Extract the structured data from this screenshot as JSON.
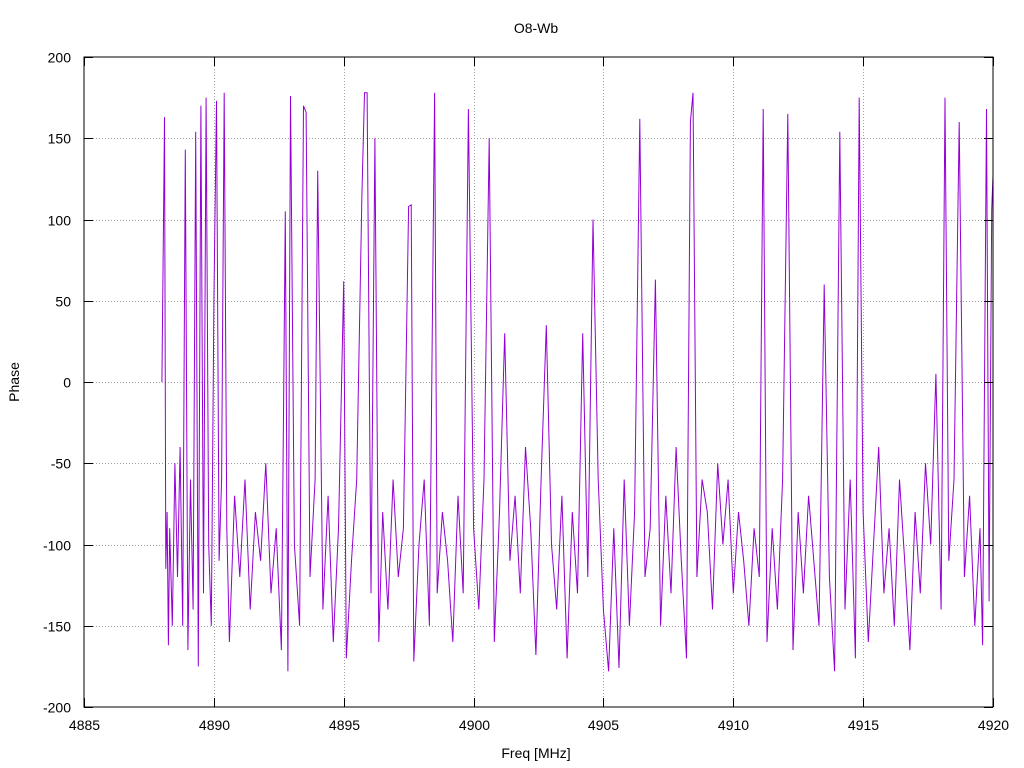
{
  "chart_data": {
    "type": "line",
    "title": "O8-Wb",
    "xlabel": "Freq [MHz]",
    "ylabel": "Phase",
    "xlim": [
      4885,
      4920
    ],
    "ylim": [
      -200,
      200
    ],
    "x_ticks": [
      4885,
      4890,
      4895,
      4900,
      4905,
      4910,
      4915,
      4920
    ],
    "y_ticks": [
      -200,
      -150,
      -100,
      -50,
      0,
      50,
      100,
      150,
      200
    ],
    "grid": true,
    "legend": "none",
    "series": [
      {
        "color": "#9400d3",
        "x_start": 4888.0,
        "x_end": 4920.0,
        "points": [
          [
            4888.0,
            0
          ],
          [
            4888.05,
            80
          ],
          [
            4888.1,
            163
          ],
          [
            4888.15,
            -115
          ],
          [
            4888.2,
            -80
          ],
          [
            4888.25,
            -162
          ],
          [
            4888.3,
            -90
          ],
          [
            4888.4,
            -150
          ],
          [
            4888.5,
            -50
          ],
          [
            4888.6,
            -120
          ],
          [
            4888.7,
            -40
          ],
          [
            4888.8,
            -150
          ],
          [
            4888.9,
            143
          ],
          [
            4889.0,
            -165
          ],
          [
            4889.1,
            -60
          ],
          [
            4889.2,
            -140
          ],
          [
            4889.3,
            154
          ],
          [
            4889.4,
            -175
          ],
          [
            4889.5,
            170
          ],
          [
            4889.6,
            -130
          ],
          [
            4889.7,
            175
          ],
          [
            4889.8,
            -100
          ],
          [
            4889.9,
            -150
          ],
          [
            4890.0,
            50
          ],
          [
            4890.1,
            173
          ],
          [
            4890.2,
            -110
          ],
          [
            4890.3,
            -60
          ],
          [
            4890.4,
            178
          ],
          [
            4890.5,
            -90
          ],
          [
            4890.6,
            -160
          ],
          [
            4890.8,
            -70
          ],
          [
            4891.0,
            -120
          ],
          [
            4891.2,
            -60
          ],
          [
            4891.4,
            -140
          ],
          [
            4891.6,
            -80
          ],
          [
            4891.8,
            -110
          ],
          [
            4892.0,
            -50
          ],
          [
            4892.2,
            -130
          ],
          [
            4892.4,
            -90
          ],
          [
            4892.6,
            -165
          ],
          [
            4892.75,
            105
          ],
          [
            4892.85,
            -178
          ],
          [
            4892.95,
            176
          ],
          [
            4893.1,
            -100
          ],
          [
            4893.3,
            -150
          ],
          [
            4893.45,
            170
          ],
          [
            4893.55,
            166
          ],
          [
            4893.7,
            -120
          ],
          [
            4893.9,
            -60
          ],
          [
            4894.0,
            130
          ],
          [
            4894.2,
            -140
          ],
          [
            4894.4,
            -70
          ],
          [
            4894.6,
            -160
          ],
          [
            4894.8,
            -90
          ],
          [
            4895.0,
            62
          ],
          [
            4895.1,
            -170
          ],
          [
            4895.3,
            -110
          ],
          [
            4895.5,
            -60
          ],
          [
            4895.7,
            115
          ],
          [
            4895.8,
            178
          ],
          [
            4895.9,
            178
          ],
          [
            4896.05,
            -130
          ],
          [
            4896.2,
            150
          ],
          [
            4896.35,
            -160
          ],
          [
            4896.5,
            -80
          ],
          [
            4896.7,
            -140
          ],
          [
            4896.9,
            -60
          ],
          [
            4897.1,
            -120
          ],
          [
            4897.3,
            -90
          ],
          [
            4897.5,
            108
          ],
          [
            4897.6,
            109
          ],
          [
            4897.7,
            -172
          ],
          [
            4897.9,
            -100
          ],
          [
            4898.1,
            -60
          ],
          [
            4898.3,
            -150
          ],
          [
            4898.5,
            178
          ],
          [
            4898.6,
            -130
          ],
          [
            4898.8,
            -80
          ],
          [
            4899.0,
            -110
          ],
          [
            4899.2,
            -160
          ],
          [
            4899.4,
            -70
          ],
          [
            4899.6,
            -130
          ],
          [
            4899.8,
            168
          ],
          [
            4900.0,
            -90
          ],
          [
            4900.2,
            -140
          ],
          [
            4900.4,
            -60
          ],
          [
            4900.6,
            150
          ],
          [
            4900.8,
            -160
          ],
          [
            4901.0,
            -80
          ],
          [
            4901.2,
            30
          ],
          [
            4901.4,
            -110
          ],
          [
            4901.6,
            -70
          ],
          [
            4901.8,
            -130
          ],
          [
            4902.0,
            -40
          ],
          [
            4902.2,
            -90
          ],
          [
            4902.4,
            -168
          ],
          [
            4902.6,
            -60
          ],
          [
            4902.8,
            35
          ],
          [
            4903.0,
            -100
          ],
          [
            4903.2,
            -140
          ],
          [
            4903.4,
            -70
          ],
          [
            4903.6,
            -170
          ],
          [
            4903.8,
            -80
          ],
          [
            4904.0,
            -130
          ],
          [
            4904.2,
            30
          ],
          [
            4904.4,
            -120
          ],
          [
            4904.6,
            100
          ],
          [
            4904.8,
            -60
          ],
          [
            4905.0,
            -140
          ],
          [
            4905.2,
            -178
          ],
          [
            4905.4,
            -90
          ],
          [
            4905.6,
            -176
          ],
          [
            4905.8,
            -60
          ],
          [
            4906.0,
            -150
          ],
          [
            4906.2,
            -80
          ],
          [
            4906.4,
            162
          ],
          [
            4906.6,
            -120
          ],
          [
            4906.8,
            -90
          ],
          [
            4907.0,
            63
          ],
          [
            4907.2,
            -150
          ],
          [
            4907.4,
            -70
          ],
          [
            4907.6,
            -130
          ],
          [
            4907.8,
            -40
          ],
          [
            4908.0,
            -110
          ],
          [
            4908.2,
            -170
          ],
          [
            4908.35,
            160
          ],
          [
            4908.45,
            178
          ],
          [
            4908.6,
            -120
          ],
          [
            4908.8,
            -60
          ],
          [
            4909.0,
            -80
          ],
          [
            4909.2,
            -140
          ],
          [
            4909.4,
            -50
          ],
          [
            4909.6,
            -100
          ],
          [
            4909.8,
            -60
          ],
          [
            4910.0,
            -130
          ],
          [
            4910.2,
            -80
          ],
          [
            4910.4,
            -110
          ],
          [
            4910.6,
            -150
          ],
          [
            4910.8,
            -90
          ],
          [
            4911.0,
            -120
          ],
          [
            4911.15,
            168
          ],
          [
            4911.3,
            -160
          ],
          [
            4911.5,
            -90
          ],
          [
            4911.7,
            -140
          ],
          [
            4911.9,
            -60
          ],
          [
            4912.1,
            165
          ],
          [
            4912.3,
            -165
          ],
          [
            4912.5,
            -80
          ],
          [
            4912.7,
            -130
          ],
          [
            4912.9,
            -70
          ],
          [
            4913.1,
            -110
          ],
          [
            4913.3,
            -150
          ],
          [
            4913.5,
            60
          ],
          [
            4913.7,
            -120
          ],
          [
            4913.9,
            -178
          ],
          [
            4914.1,
            154
          ],
          [
            4914.3,
            -140
          ],
          [
            4914.5,
            -60
          ],
          [
            4914.7,
            -170
          ],
          [
            4914.85,
            175
          ],
          [
            4915.0,
            -80
          ],
          [
            4915.2,
            -160
          ],
          [
            4915.4,
            -100
          ],
          [
            4915.6,
            -40
          ],
          [
            4915.8,
            -130
          ],
          [
            4916.0,
            -90
          ],
          [
            4916.2,
            -150
          ],
          [
            4916.4,
            -60
          ],
          [
            4916.6,
            -110
          ],
          [
            4916.8,
            -165
          ],
          [
            4917.0,
            -80
          ],
          [
            4917.2,
            -130
          ],
          [
            4917.4,
            -50
          ],
          [
            4917.6,
            -100
          ],
          [
            4917.8,
            5
          ],
          [
            4918.0,
            -140
          ],
          [
            4918.15,
            175
          ],
          [
            4918.3,
            -110
          ],
          [
            4918.5,
            -60
          ],
          [
            4918.7,
            160
          ],
          [
            4918.9,
            -120
          ],
          [
            4919.1,
            -70
          ],
          [
            4919.3,
            -150
          ],
          [
            4919.5,
            -90
          ],
          [
            4919.6,
            -162
          ],
          [
            4919.75,
            168
          ],
          [
            4919.85,
            -135
          ],
          [
            4919.95,
            106
          ],
          [
            4920.0,
            127
          ]
        ]
      }
    ]
  }
}
